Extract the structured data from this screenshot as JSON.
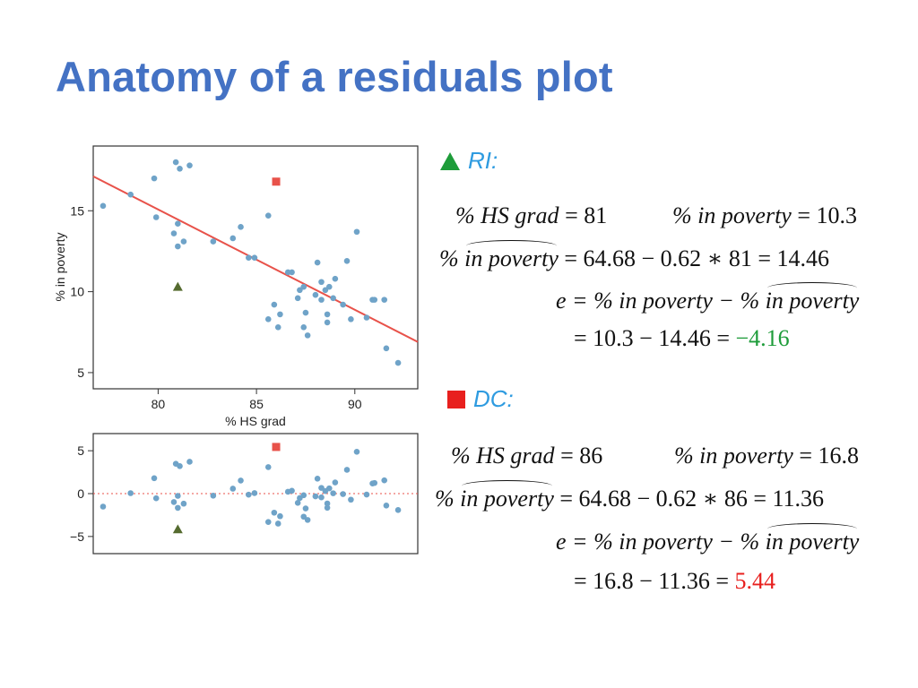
{
  "title": "Anatomy of a residuals plot",
  "colors": {
    "title": "#4472C4",
    "point": "#6FA3C8",
    "regression_line": "#E8524A",
    "ri_marker": "#556B2F",
    "dc_marker": "#E8524A",
    "header_triangle": "#1E9C3A",
    "header_square": "#E8201E",
    "case_label": "#2E9BE0",
    "negative_residual": "#1E9C3A",
    "positive_residual": "#E8201E"
  },
  "chart_data": [
    {
      "type": "scatter",
      "xlabel": "% HS grad",
      "ylabel": "% in poverty",
      "xlim": [
        76.7,
        93.2
      ],
      "ylim": [
        4.0,
        19.0
      ],
      "xticks": [
        80,
        85,
        90
      ],
      "yticks": [
        5,
        10,
        15
      ],
      "line": {
        "intercept": 64.68,
        "slope": -0.62
      },
      "points": [
        {
          "x": 77.2,
          "y": 15.3
        },
        {
          "x": 78.6,
          "y": 16.0
        },
        {
          "x": 79.8,
          "y": 17.0
        },
        {
          "x": 79.9,
          "y": 14.6
        },
        {
          "x": 80.8,
          "y": 13.6
        },
        {
          "x": 80.9,
          "y": 18.0
        },
        {
          "x": 81.1,
          "y": 17.6
        },
        {
          "x": 81.0,
          "y": 14.2
        },
        {
          "x": 81.3,
          "y": 13.1
        },
        {
          "x": 81.0,
          "y": 12.8
        },
        {
          "x": 81.6,
          "y": 17.8
        },
        {
          "x": 82.8,
          "y": 13.1
        },
        {
          "x": 83.8,
          "y": 13.3
        },
        {
          "x": 84.2,
          "y": 14.0
        },
        {
          "x": 84.6,
          "y": 12.1
        },
        {
          "x": 84.9,
          "y": 12.1
        },
        {
          "x": 85.6,
          "y": 14.7
        },
        {
          "x": 85.6,
          "y": 8.3
        },
        {
          "x": 85.9,
          "y": 9.2
        },
        {
          "x": 86.1,
          "y": 7.8
        },
        {
          "x": 86.2,
          "y": 8.6
        },
        {
          "x": 86.6,
          "y": 11.2
        },
        {
          "x": 86.8,
          "y": 11.2
        },
        {
          "x": 87.1,
          "y": 9.6
        },
        {
          "x": 87.2,
          "y": 10.1
        },
        {
          "x": 87.4,
          "y": 10.3
        },
        {
          "x": 87.5,
          "y": 8.7
        },
        {
          "x": 87.4,
          "y": 7.8
        },
        {
          "x": 87.6,
          "y": 7.3
        },
        {
          "x": 88.1,
          "y": 11.8
        },
        {
          "x": 88.0,
          "y": 9.8
        },
        {
          "x": 88.3,
          "y": 10.6
        },
        {
          "x": 88.3,
          "y": 9.5
        },
        {
          "x": 88.5,
          "y": 10.1
        },
        {
          "x": 88.6,
          "y": 8.6
        },
        {
          "x": 88.6,
          "y": 8.1
        },
        {
          "x": 88.7,
          "y": 10.3
        },
        {
          "x": 88.9,
          "y": 9.6
        },
        {
          "x": 89.0,
          "y": 10.8
        },
        {
          "x": 89.4,
          "y": 9.2
        },
        {
          "x": 89.6,
          "y": 11.9
        },
        {
          "x": 89.8,
          "y": 8.3
        },
        {
          "x": 90.1,
          "y": 13.7
        },
        {
          "x": 90.6,
          "y": 8.4
        },
        {
          "x": 90.9,
          "y": 9.5
        },
        {
          "x": 91.0,
          "y": 9.5
        },
        {
          "x": 91.5,
          "y": 9.5
        },
        {
          "x": 91.6,
          "y": 6.5
        },
        {
          "x": 92.2,
          "y": 5.6
        }
      ],
      "highlights": [
        {
          "label": "RI",
          "marker": "triangle",
          "x": 81,
          "y": 10.3
        },
        {
          "label": "DC",
          "marker": "square",
          "x": 86,
          "y": 16.8
        }
      ]
    },
    {
      "type": "scatter",
      "xlabel": "",
      "ylabel": "",
      "xlim": [
        76.7,
        93.2
      ],
      "ylim": [
        -7.0,
        7.0
      ],
      "yticks": [
        5,
        0,
        -5
      ],
      "ytick_labels": [
        "5",
        "0",
        "−5"
      ],
      "zero_line": true
    }
  ],
  "ri": {
    "label": "RI:",
    "line1_lhs": "% HS grad",
    "line1_rhs": "= 81",
    "line1b_lhs": "% in poverty",
    "line1b_rhs": "= 10.3",
    "line2_pct": "%",
    "line2_hat": "in poverty",
    "line2_rhs": "= 64.68 − 0.62 ∗ 81 = 14.46",
    "line3_e": "e",
    "line3_mid": "= % in poverty − %",
    "line3_hat": "in poverty",
    "line4_eq": "= 10.3 − 14.46 =",
    "line4_result": "−4.16"
  },
  "dc": {
    "label": "DC:",
    "line1_lhs": "% HS grad",
    "line1_rhs": "= 86",
    "line1b_lhs": "% in poverty",
    "line1b_rhs": "= 16.8",
    "line2_pct": "%",
    "line2_hat": "in poverty",
    "line2_rhs": "= 64.68 − 0.62 ∗ 86 = 11.36",
    "line3_e": "e",
    "line3_mid": "= % in poverty − %",
    "line3_hat": "in poverty",
    "line4_eq": "= 16.8 − 11.36 =",
    "line4_result": "5.44"
  }
}
